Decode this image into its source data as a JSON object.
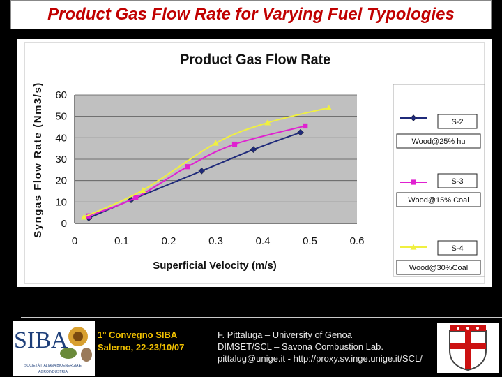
{
  "slide": {
    "title": "Product Gas Flow Rate for Varying Fuel Typologies"
  },
  "footer": {
    "logo_text": "SIBA",
    "logo_subtitle_1": "SOCIETÀ ITALIANA BIOENERGIA E",
    "logo_subtitle_2": "AGROINDUSTRIA",
    "conference_line_1": "1° Convegno SIBA",
    "conference_line_2": "Salerno, 22-23/10/07",
    "affiliation_line_1": "F. Pittaluga – University of Genoa",
    "affiliation_line_2": "DIMSET/SCL – Savona Combustion Lab.",
    "affiliation_line_3": "pittalug@unige.it - http://proxy.sv.inge.unige.it/SCL/"
  },
  "chart_data": {
    "type": "line",
    "title": "Product Gas Flow Rate",
    "xlabel": "Superficial Velocity (m/s)",
    "ylabel": "Syngas Flow Rate (Nm3/s)",
    "xlim": [
      0,
      0.6
    ],
    "ylim": [
      0,
      60
    ],
    "x_ticks": [
      "0",
      "0.1",
      "0.2",
      "0.3",
      "0.4",
      "0.5",
      "0.6"
    ],
    "y_ticks": [
      "0",
      "10",
      "20",
      "30",
      "40",
      "50",
      "60"
    ],
    "grid": "horizontal",
    "legend_position": "right",
    "series": [
      {
        "name": "S-2",
        "label_line_2": "Wood@25% hu",
        "color": "#1f2a7a",
        "marker": "diamond",
        "points": [
          [
            0.03,
            2.5
          ],
          [
            0.12,
            11
          ],
          [
            0.27,
            24.5
          ],
          [
            0.38,
            34.5
          ],
          [
            0.48,
            42.5
          ]
        ]
      },
      {
        "name": "S-3",
        "label_line_2": "Wood@15% Coal",
        "color": "#e020d0",
        "marker": "square",
        "points": [
          [
            0.03,
            3.5
          ],
          [
            0.13,
            12
          ],
          [
            0.24,
            26.5
          ],
          [
            0.34,
            37
          ],
          [
            0.49,
            45.5
          ]
        ]
      },
      {
        "name": "S-4",
        "label_line_2": "Wood@30%Coal",
        "color": "#f0f040",
        "marker": "triangle",
        "points": [
          [
            0.02,
            3
          ],
          [
            0.145,
            15.5
          ],
          [
            0.3,
            37.5
          ],
          [
            0.41,
            47
          ],
          [
            0.54,
            54
          ]
        ]
      }
    ]
  }
}
